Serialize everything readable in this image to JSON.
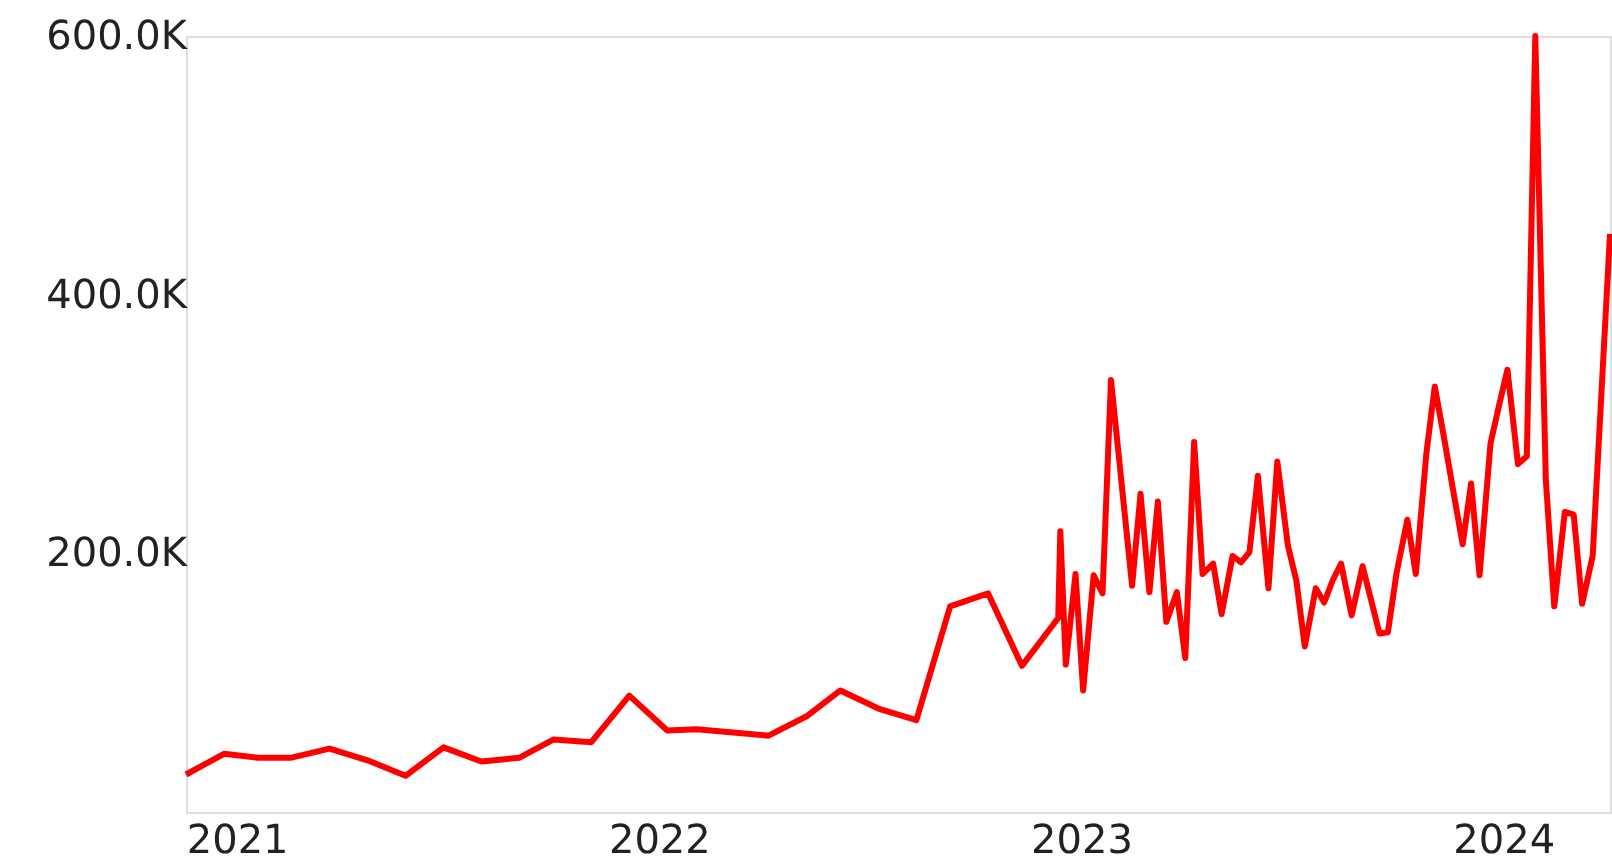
{
  "chart_data": {
    "type": "line",
    "x": [
      2020.88,
      2020.97,
      2021.05,
      2021.13,
      2021.22,
      2021.31,
      2021.4,
      2021.49,
      2021.58,
      2021.67,
      2021.75,
      2021.84,
      2021.93,
      2022.02,
      2022.09,
      2022.26,
      2022.35,
      2022.43,
      2022.52,
      2022.61,
      2022.69,
      2022.78,
      2022.86,
      2022.946,
      2022.951,
      2022.964,
      2022.987,
      2023.005,
      2023.03,
      2023.051,
      2023.071,
      2023.121,
      2023.141,
      2023.162,
      2023.182,
      2023.202,
      2023.227,
      2023.247,
      2023.268,
      2023.288,
      2023.313,
      2023.333,
      2023.359,
      2023.379,
      2023.399,
      2023.419,
      2023.444,
      2023.465,
      2023.49,
      2023.51,
      2023.53,
      2023.556,
      2023.576,
      2023.596,
      2023.616,
      2023.641,
      2023.667,
      2023.707,
      2023.727,
      2023.747,
      2023.773,
      2023.793,
      2023.818,
      2023.838,
      2023.859,
      2023.884,
      2023.904,
      2023.924,
      2023.944,
      2023.97,
      2023.99,
      2024.01,
      2024.035,
      2024.056,
      2024.076,
      2024.101,
      2024.121,
      2024.146,
      2024.167,
      2024.187,
      2024.212,
      2024.253
    ],
    "series": [
      {
        "color": "#ff0000",
        "values": [
          29000,
          45000,
          42000,
          42000,
          49000,
          40000,
          28000,
          50000,
          39000,
          42000,
          56000,
          54000,
          90000,
          63000,
          64000,
          59000,
          74000,
          94000,
          80000,
          71000,
          159000,
          169000,
          113000,
          150000,
          217000,
          114000,
          184000,
          94000,
          183000,
          169000,
          334000,
          175000,
          246000,
          170000,
          240000,
          147000,
          170000,
          119000,
          286000,
          184000,
          192000,
          153000,
          198000,
          193000,
          201000,
          260000,
          173000,
          271000,
          206000,
          179000,
          128000,
          173000,
          162000,
          179000,
          192000,
          152000,
          190000,
          138000,
          139000,
          184000,
          226000,
          184000,
          277000,
          329000,
          291000,
          244000,
          207000,
          254000,
          183000,
          285000,
          314000,
          342000,
          269000,
          275000,
          600000,
          257000,
          159000,
          232000,
          230000,
          161000,
          198000,
          447000
        ]
      }
    ],
    "xlim": [
      2020.88,
      2024.253
    ],
    "xticks": [
      2021,
      2022,
      2023,
      2024
    ],
    "ylim": [
      0,
      600000
    ],
    "yticks": [
      {
        "value": 200000,
        "label": "200.0K"
      },
      {
        "value": 400000,
        "label": "400.0K"
      },
      {
        "value": 600000,
        "label": "600.0K"
      }
    ],
    "grid": false,
    "marker": "none",
    "line_style": "solid"
  }
}
